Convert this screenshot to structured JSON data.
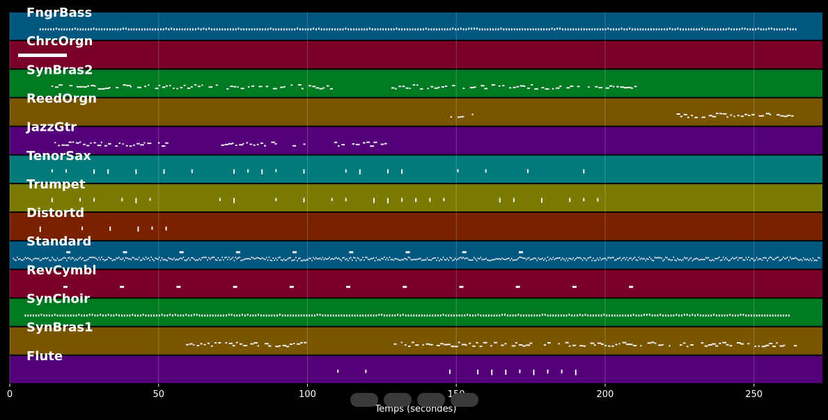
{
  "chart_data": {
    "type": "piano-roll",
    "xlabel": "Temps (secondes)",
    "xlim": [
      0,
      273
    ],
    "x_ticks": [
      0,
      50,
      100,
      150,
      200,
      250
    ],
    "grid": true,
    "tracks": [
      {
        "name": "FngrBass",
        "color": "#005780",
        "pattern": "dense",
        "ranges": [
          [
            10,
            264
          ]
        ]
      },
      {
        "name": "ChrcOrgn",
        "color": "#7a0027",
        "pattern": "none",
        "ranges": []
      },
      {
        "name": "SynBras2",
        "color": "#007a22",
        "pattern": "clusters",
        "ranges": [
          [
            14,
            110
          ],
          [
            127,
            210
          ]
        ]
      },
      {
        "name": "ReedOrgn",
        "color": "#7a5500",
        "pattern": "clusters",
        "ranges": [
          [
            148,
            156
          ],
          [
            224,
            264
          ]
        ]
      },
      {
        "name": "JazzGtr",
        "color": "#54007a",
        "pattern": "clusters",
        "ranges": [
          [
            15,
            53
          ],
          [
            71,
            99
          ],
          [
            109,
            127
          ]
        ]
      },
      {
        "name": "TenorSax",
        "color": "#007a7a",
        "pattern": "sparse",
        "ranges": [
          [
            14,
            210
          ]
        ]
      },
      {
        "name": "Trumpet",
        "color": "#7a7a00",
        "pattern": "sparse",
        "ranges": [
          [
            14,
            210
          ]
        ]
      },
      {
        "name": "Distortd",
        "color": "#7a2200",
        "pattern": "sparse",
        "ranges": [
          [
            10,
            58
          ]
        ]
      },
      {
        "name": "Standard",
        "color": "#005780",
        "pattern": "drums",
        "ranges": [
          [
            1,
            272
          ]
        ]
      },
      {
        "name": "RevCymbl",
        "color": "#7a0027",
        "pattern": "hits",
        "ranges": [
          [
            18,
            214
          ]
        ]
      },
      {
        "name": "SynChoir",
        "color": "#007a22",
        "pattern": "dense",
        "ranges": [
          [
            5,
            262
          ]
        ]
      },
      {
        "name": "SynBras1",
        "color": "#7a5500",
        "pattern": "clusters",
        "ranges": [
          [
            58,
            100
          ],
          [
            129,
            264
          ]
        ]
      },
      {
        "name": "Flute",
        "color": "#54007a",
        "pattern": "sparse",
        "ranges": [
          [
            110,
            193
          ]
        ]
      }
    ]
  },
  "controls": [
    {
      "name": "play-button",
      "glyph": "▷"
    },
    {
      "name": "forward-button",
      "glyph": ">"
    },
    {
      "name": "stop-button",
      "glyph": "■"
    },
    {
      "name": "rewind-button",
      "glyph": "◁"
    }
  ]
}
